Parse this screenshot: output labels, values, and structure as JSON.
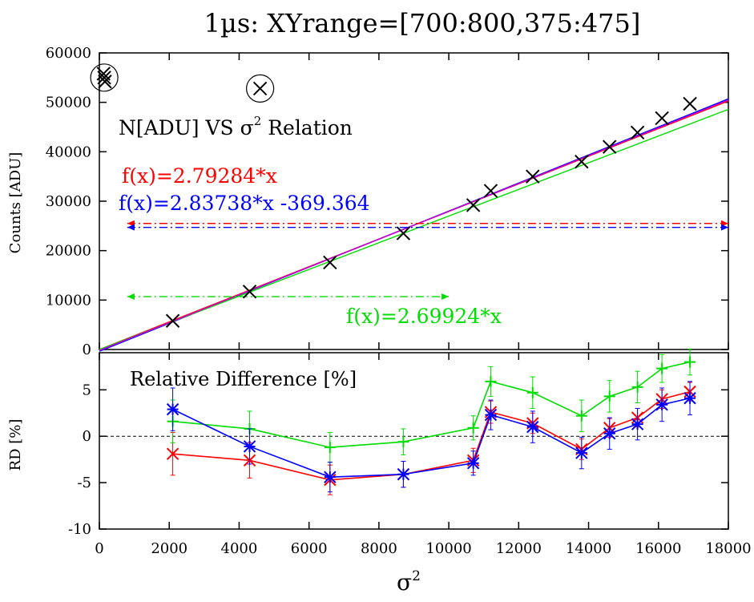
{
  "chart_data": [
    {
      "type": "scatter",
      "title": "1µs: XYrange=[700:800,375:475]",
      "xlabel": "σ",
      "xlabel_superscript": "2",
      "ylabel": "Counts [ADU]",
      "xlim": [
        0,
        18000
      ],
      "ylim": [
        0,
        60000
      ],
      "xticks": [
        0,
        2000,
        4000,
        6000,
        8000,
        10000,
        12000,
        14000,
        16000,
        18000
      ],
      "yticks": [
        0,
        10000,
        20000,
        30000,
        40000,
        50000,
        60000
      ],
      "grid": false,
      "zero_line": "dashed",
      "annotation": {
        "prefix": "N[ADU] VS ",
        "symbol": "σ",
        "superscript": "2",
        "suffix": " Relation"
      },
      "points": {
        "marker": "x",
        "color": "#000000",
        "x": [
          120,
          140,
          160,
          4600,
          2100,
          4300,
          6600,
          8700,
          10700,
          11200,
          12400,
          13800,
          14600,
          15400,
          16100,
          16900
        ],
        "y": [
          55800,
          55000,
          54200,
          52800,
          5800,
          11700,
          17600,
          23500,
          29200,
          32100,
          35000,
          38000,
          41000,
          43900,
          46800,
          49700
        ]
      },
      "outliers_circled": [
        {
          "x": 140,
          "y": 55000
        },
        {
          "x": 4600,
          "y": 52800
        }
      ],
      "fits": [
        {
          "color": "#ff0000",
          "label": "f(x)=2.79284*x",
          "slope": 2.79284,
          "intercept": 0,
          "range_arrow": [
            800,
            18000
          ],
          "arrow_y": 25500
        },
        {
          "color": "#0000ff",
          "label": "f(x)=2.83738*x -369.364",
          "slope": 2.83738,
          "intercept": -369.364,
          "range_arrow": [
            800,
            18000
          ],
          "arrow_y": 24700
        },
        {
          "color": "#00dd00",
          "label": "f(x)=2.69924*x",
          "slope": 2.69924,
          "intercept": 0,
          "range_arrow": [
            800,
            10000
          ],
          "arrow_y": 10700
        },
        {
          "color": "#cc00cc",
          "label": "",
          "slope": 2.815,
          "intercept": -200,
          "range_arrow": null,
          "arrow_y": null
        }
      ]
    },
    {
      "type": "line",
      "xlabel": "σ",
      "xlabel_superscript": "2",
      "ylabel": "RD [%]",
      "xlim": [
        0,
        18000
      ],
      "ylim": [
        -10,
        9
      ],
      "xticks": [
        0,
        2000,
        4000,
        6000,
        8000,
        10000,
        12000,
        14000,
        16000,
        18000
      ],
      "xtick_labels": [
        "0",
        "2000",
        "4000",
        "6000",
        "8000",
        "10000",
        "12000",
        "14000",
        "16000",
        "18000"
      ],
      "yticks": [
        -10,
        -5,
        0,
        5
      ],
      "zero_line": "dashed",
      "annotation": "Relative Difference [%]",
      "x": [
        2100,
        4300,
        6600,
        8700,
        10700,
        11200,
        12400,
        13800,
        14600,
        15400,
        16100,
        16900
      ],
      "series": [
        {
          "color": "#ff0000",
          "marker": "x",
          "values": [
            -1.9,
            -2.6,
            -4.7,
            -4.1,
            -2.6,
            2.6,
            1.4,
            -1.4,
            0.9,
            2.0,
            4.0,
            4.8
          ],
          "errors": [
            2.3,
            1.9,
            1.6,
            1.4,
            1.3,
            1.2,
            1.1,
            1.1,
            1.0,
            1.0,
            1.0,
            1.0
          ]
        },
        {
          "color": "#00dd00",
          "marker": "+",
          "values": [
            1.6,
            0.8,
            -1.2,
            -0.6,
            0.9,
            5.9,
            4.7,
            2.2,
            4.3,
            5.3,
            7.3,
            8.0
          ],
          "errors": [
            2.3,
            1.9,
            1.6,
            1.4,
            1.3,
            1.6,
            1.7,
            1.7,
            1.7,
            1.7,
            1.5,
            1.4
          ]
        },
        {
          "color": "#0000ff",
          "marker": "*",
          "values": [
            2.9,
            -1.1,
            -4.4,
            -4.1,
            -2.9,
            2.3,
            1.0,
            -1.8,
            0.3,
            1.3,
            3.4,
            4.1
          ],
          "errors": [
            2.3,
            1.9,
            1.6,
            1.4,
            1.3,
            1.6,
            1.7,
            1.7,
            1.7,
            1.7,
            1.8,
            1.8
          ]
        }
      ]
    }
  ]
}
